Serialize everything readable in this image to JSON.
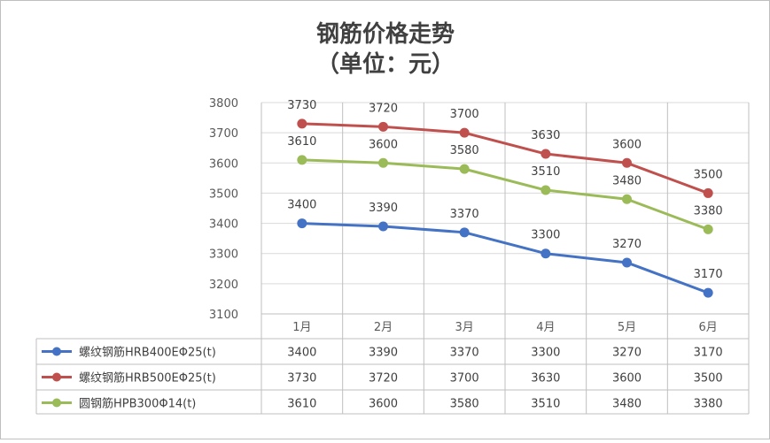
{
  "chart_data": {
    "type": "line",
    "title": "钢筋价格走势",
    "subtitle": "（单位：元）",
    "categories": [
      "1月",
      "2月",
      "3月",
      "4月",
      "5月",
      "6月"
    ],
    "series": [
      {
        "name": "螺纹钢筋HRB400EΦ25(t)",
        "color": "#4472c4",
        "values": [
          3400,
          3390,
          3370,
          3300,
          3270,
          3170
        ]
      },
      {
        "name": "螺纹钢筋HRB500EΦ25(t)",
        "color": "#c0504d",
        "values": [
          3730,
          3720,
          3700,
          3630,
          3600,
          3500
        ]
      },
      {
        "name": "圆钢筋HPB300Φ14(t)",
        "color": "#9bbb59",
        "values": [
          3610,
          3600,
          3580,
          3510,
          3480,
          3380
        ]
      }
    ],
    "yticks": [
      "3100",
      "3200",
      "3300",
      "3400",
      "3500",
      "3600",
      "3700",
      "3800"
    ],
    "ylim": [
      3100,
      3800
    ],
    "grid": true,
    "data_table": true
  }
}
